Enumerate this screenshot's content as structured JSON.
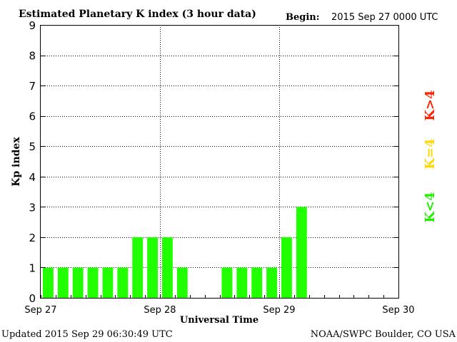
{
  "header": {
    "title": "Estimated Planetary K index (3 hour data)",
    "begin_label": "Begin:",
    "begin_value": "2015 Sep 27 0000 UTC"
  },
  "footer": {
    "updated": "Updated 2015 Sep 29 06:30:49 UTC",
    "credit": "NOAA/SWPC Boulder, CO USA"
  },
  "legend": {
    "gt4": "K>4",
    "eq4": "K=4",
    "lt4": "K<4",
    "colors": {
      "gt4": "#ff2200",
      "eq4": "#ffd800",
      "lt4": "#22ee00"
    }
  },
  "chart_data": {
    "type": "bar",
    "title": "Estimated Planetary K index (3 hour data)",
    "xlabel": "Universal Time",
    "ylabel": "Kp index",
    "ylim": [
      0,
      9
    ],
    "yticks": [
      "0",
      "1",
      "2",
      "3",
      "4",
      "5",
      "6",
      "7",
      "8",
      "9"
    ],
    "xticks": [
      "Sep 27",
      "Sep 28",
      "Sep 29",
      "Sep 30"
    ],
    "grid": true,
    "bar_color": "#22ff00",
    "interval_hours": 3,
    "values": [
      1,
      1,
      1,
      1,
      1,
      1,
      2,
      2,
      2,
      1,
      null,
      null,
      1,
      1,
      1,
      1,
      2,
      3
    ]
  }
}
